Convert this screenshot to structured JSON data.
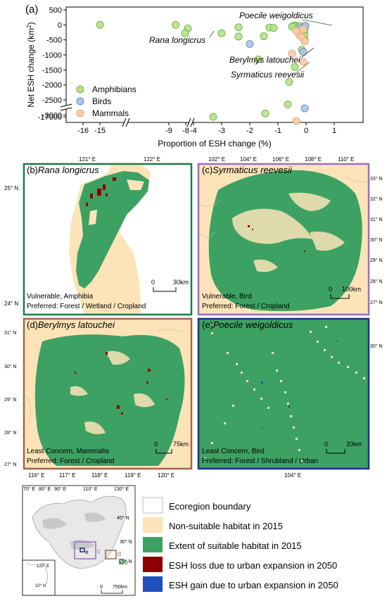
{
  "panel_a": {
    "tag": "(a)",
    "chart_data": {
      "type": "scatter",
      "xlabel": "Proportion of ESH change (%)",
      "ylabel": "Net ESH change (km²)",
      "ylabel_main": "Net ESH change (km",
      "ylabel_sup": "2",
      "ylabel_close": ")",
      "x_ticks": [
        "-16",
        "-15",
        "-9",
        "-8",
        "-4",
        "-3",
        "-2",
        "-1",
        "0",
        "1"
      ],
      "y_ticks": [
        "500",
        "0",
        "-500",
        "-1000",
        "-1500",
        "-2000",
        "-2500",
        "-3000",
        "-17000"
      ],
      "grid": false,
      "legend_position": "bottom-left",
      "series": [
        {
          "name": "Amphibians",
          "color": "#b8e08c",
          "stroke": "#72b848",
          "points": [
            [
              -15.0,
              0
            ],
            [
              -8.6,
              0
            ],
            [
              -4.2,
              -120
            ],
            [
              -4.3,
              -280
            ],
            [
              -3.3,
              -17000
            ],
            [
              -3.0,
              -280
            ],
            [
              -2.4,
              -80
            ],
            [
              -2.4,
              -390
            ],
            [
              -1.7,
              -1150
            ],
            [
              -1.5,
              -380
            ],
            [
              -1.3,
              -90
            ],
            [
              -1.15,
              -100
            ],
            [
              -1.45,
              -2950
            ],
            [
              -0.6,
              -1900
            ],
            [
              -0.65,
              -2650
            ],
            [
              -0.4,
              -1400
            ],
            [
              -0.38,
              -20
            ],
            [
              -0.35,
              -70
            ],
            [
              -0.3,
              -180
            ],
            [
              -0.25,
              -260
            ],
            [
              -0.22,
              -40
            ],
            [
              -0.18,
              -340
            ],
            [
              -0.12,
              -120
            ],
            [
              -0.08,
              -60
            ],
            [
              -0.05,
              -480
            ],
            [
              -0.06,
              -300
            ],
            [
              -0.15,
              -830
            ],
            [
              -0.05,
              -160
            ],
            [
              -0.45,
              -30
            ],
            [
              -0.5,
              -60
            ]
          ]
        },
        {
          "name": "Birds",
          "color": "#aec4e6",
          "stroke": "#6f8fc8",
          "points": [
            [
              -2.0,
              -640
            ],
            [
              -0.1,
              -900
            ],
            [
              -0.05,
              -2780
            ],
            [
              -0.02,
              -30
            ],
            [
              -0.2,
              -100
            ]
          ]
        },
        {
          "name": "Mammals",
          "color": "#f8cfa7",
          "stroke": "#e8a878",
          "points": [
            [
              -0.5,
              -960
            ],
            [
              -0.1,
              -1230
            ],
            [
              -0.35,
              -3200
            ],
            [
              -0.25,
              -330
            ],
            [
              -0.15,
              -420
            ],
            [
              -0.05,
              -550
            ],
            [
              -0.35,
              -200
            ],
            [
              -0.1,
              -150
            ]
          ]
        }
      ]
    },
    "labels": {
      "poecile": "Poecile weigoldicus",
      "rana": "Rana longicrus",
      "berylmys": "Berylmys latouchei",
      "syrmaticus": "Syrmaticus reevesii"
    }
  },
  "map_b": {
    "tag": "(b)",
    "species": "Rana longicrus",
    "status": "Vulnerable, Amphibia",
    "preferred": "Preferred: Forest / Wetland / Cropland",
    "scale_zero": "0",
    "scale_end": "30km",
    "lon_labels": [
      "121° E",
      "122° E"
    ],
    "lat_labels": [
      "25° N",
      "24° N"
    ]
  },
  "map_c": {
    "tag": "(c)",
    "species": "Syrmaticus reevesii",
    "status": "Vulnerable, Bird",
    "preferred": "Preferred: Forest / Cropland",
    "scale_zero": "0",
    "scale_end": "100km",
    "lon_labels": [
      "102° E",
      "104° E",
      "106° E",
      "108° E",
      "110° E"
    ],
    "lat_labels": [
      "33° N",
      "32° N",
      "31° N",
      "30° N",
      "29° N",
      "28° N",
      "27° N"
    ]
  },
  "map_d": {
    "tag": "(d)",
    "species": "Berylmys latouchei",
    "status": "Least Concern, Mammalia",
    "preferred": "Preferred: Forest / Cropland",
    "scale_zero": "0",
    "scale_end": "75km",
    "lon_labels": [
      "116° E",
      "117° E",
      "118° E",
      "119° E",
      "120° E"
    ],
    "lat_labels": [
      "31° N",
      "30° N",
      "29° N",
      "28° N",
      "27° N"
    ]
  },
  "map_e": {
    "tag": "(e)",
    "species": "Poecile weigoldicus",
    "status": "Least Concern, Bird",
    "preferred": "Preferred: Forest / Shrubland / Urban",
    "scale_zero": "0",
    "scale_end": "20km",
    "lon_labels": [
      "104° E"
    ],
    "lat_labels": [
      "30° N"
    ]
  },
  "overview": {
    "lon_labels": [
      "70° E",
      "80° E",
      "90° E",
      "110° E",
      "130° E"
    ],
    "lat_labels": [
      "40° N",
      "30° N",
      "20° N"
    ],
    "inset_lon": "120° E",
    "inset_lat": "10° N",
    "box_labels": [
      "e",
      "c",
      "d",
      "b"
    ],
    "scale_zero": "0",
    "scale_end": "750km"
  },
  "legend": {
    "ecoregion": "Ecoregion boundary",
    "nonsuitable": "Non-suitable habitat in 2015",
    "suitable": "Extent of suitable habitat  in 2015",
    "loss": "ESH loss due to urban expansion in 2050",
    "gain": "ESH gain due to urban expansion in 2050"
  },
  "colors": {
    "green": "#3da163",
    "beige": "#fce4b8",
    "darkred": "#8b0000",
    "blue": "#1f4fb8",
    "frame_b": "#1e7a44",
    "frame_c": "#9a6fbf",
    "frame_d": "#a0674a",
    "frame_e": "#1f2f8a"
  }
}
